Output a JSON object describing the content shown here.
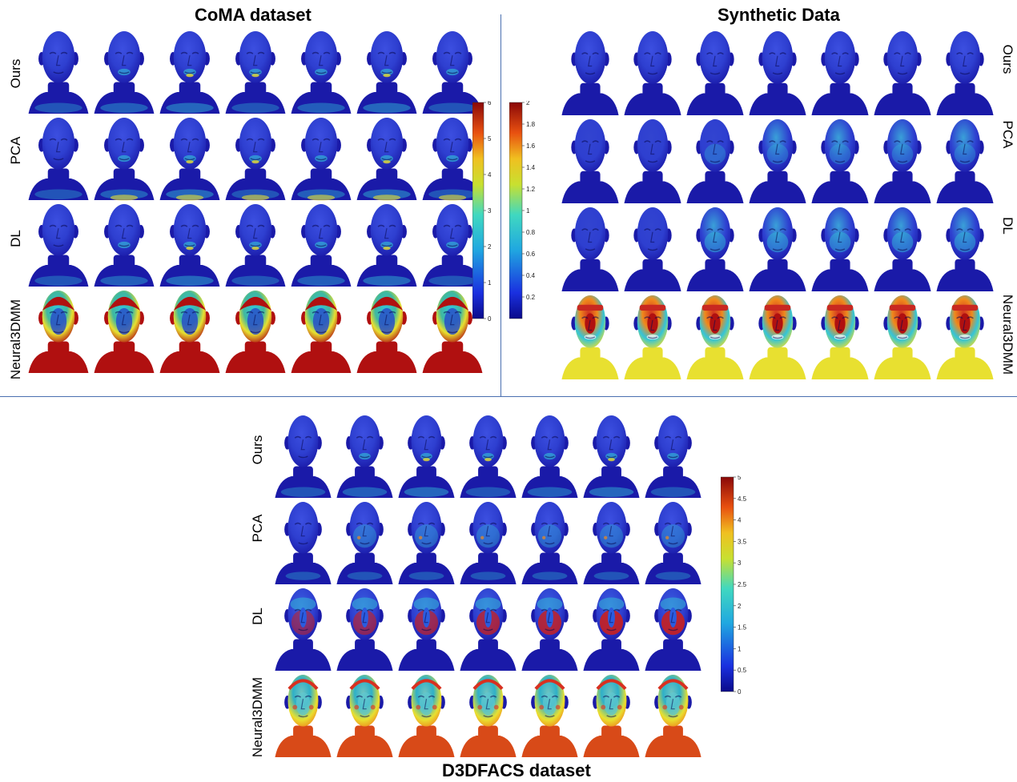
{
  "panels": {
    "coma": {
      "title": "CoMA dataset",
      "rows": [
        {
          "label": "Ours",
          "scheme": "ours"
        },
        {
          "label": "PCA",
          "scheme": "pca"
        },
        {
          "label": "DL",
          "scheme": "dl"
        },
        {
          "label": "Neural3DMM",
          "scheme": "neural_red"
        }
      ],
      "colorbar": {
        "ticks": [
          "0",
          "1",
          "2",
          "3",
          "4",
          "5",
          "6"
        ]
      }
    },
    "synthetic": {
      "title": "Synthetic Data",
      "rows": [
        {
          "label": "Ours",
          "scheme": "smooth_blue"
        },
        {
          "label": "PCA",
          "scheme": "smooth_pca"
        },
        {
          "label": "DL",
          "scheme": "smooth_dl"
        },
        {
          "label": "Neural3DMM",
          "scheme": "smooth_neural"
        }
      ],
      "colorbar": {
        "ticks": [
          "0.2",
          "0.4",
          "0.6",
          "0.8",
          "1",
          "1.2",
          "1.4",
          "1.6",
          "1.8",
          "2"
        ]
      }
    },
    "d3dfacs": {
      "title": "D3DFACS dataset",
      "rows": [
        {
          "label": "Ours",
          "scheme": "ours"
        },
        {
          "label": "PCA",
          "scheme": "pca_spot"
        },
        {
          "label": "DL",
          "scheme": "dl_red"
        },
        {
          "label": "Neural3DMM",
          "scheme": "neural_multi"
        }
      ],
      "colorbar": {
        "ticks": [
          "0",
          "0.5",
          "1",
          "1.5",
          "2",
          "2.5",
          "3",
          "3.5",
          "4",
          "4.5",
          "5"
        ]
      }
    }
  },
  "colors": {
    "deep_blue": "#1a1aa8",
    "mid_blue": "#2e3fd0",
    "cyan": "#33c4d8",
    "yellow": "#e8e030",
    "orange": "#f08a1c",
    "red": "#b01010",
    "divider": "#4a6fb0"
  }
}
